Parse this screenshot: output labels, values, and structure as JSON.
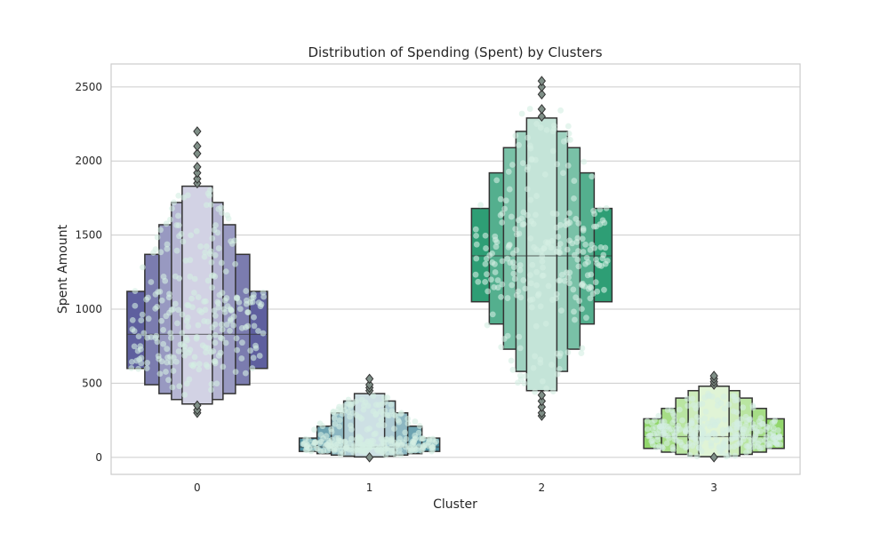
{
  "chart_data": {
    "type": "boxen",
    "title": "Distribution of Spending (Spent) by Clusters",
    "xlabel": "Cluster",
    "ylabel": "Spent Amount",
    "categories": [
      "0",
      "1",
      "2",
      "3"
    ],
    "ylim": [
      -115,
      2655
    ],
    "yticks": [
      0,
      500,
      1000,
      1500,
      2000,
      2500
    ],
    "grid": true,
    "overlay": "swarm",
    "series": [
      {
        "category": "0",
        "color": "#5e5f9e",
        "levels": [
          {
            "low": 600,
            "high": 1120
          },
          {
            "low": 490,
            "high": 1370
          },
          {
            "low": 430,
            "high": 1570
          },
          {
            "low": 390,
            "high": 1720
          },
          {
            "low": 360,
            "high": 1830
          }
        ],
        "median": 830,
        "outliers": [
          300,
          320,
          350,
          1850,
          1880,
          1920,
          1960,
          2050,
          2100,
          2200
        ],
        "swarm_range": [
          420,
          1830
        ]
      },
      {
        "category": "1",
        "color": "#4d8fa0",
        "levels": [
          {
            "low": 40,
            "high": 130
          },
          {
            "low": 25,
            "high": 210
          },
          {
            "low": 15,
            "high": 300
          },
          {
            "low": 8,
            "high": 380
          },
          {
            "low": 3,
            "high": 430
          }
        ],
        "median": 70,
        "outliers": [
          0,
          450,
          470,
          490,
          530
        ],
        "swarm_range": [
          5,
          420
        ]
      },
      {
        "category": "2",
        "color": "#2e9e75",
        "levels": [
          {
            "low": 1050,
            "high": 1680
          },
          {
            "low": 900,
            "high": 1920
          },
          {
            "low": 730,
            "high": 2090
          },
          {
            "low": 580,
            "high": 2200
          },
          {
            "low": 450,
            "high": 2290
          }
        ],
        "median": 1360,
        "outliers": [
          280,
          300,
          340,
          380,
          420,
          2300,
          2350,
          2450,
          2500,
          2540
        ],
        "swarm_range": [
          400,
          2380
        ]
      },
      {
        "category": "3",
        "color": "#92d66c",
        "levels": [
          {
            "low": 60,
            "high": 260
          },
          {
            "low": 35,
            "high": 330
          },
          {
            "low": 20,
            "high": 400
          },
          {
            "low": 10,
            "high": 450
          },
          {
            "low": 5,
            "high": 480
          }
        ],
        "median": 140,
        "outliers": [
          0,
          490,
          510,
          530,
          550
        ],
        "swarm_range": [
          5,
          430
        ]
      }
    ]
  }
}
